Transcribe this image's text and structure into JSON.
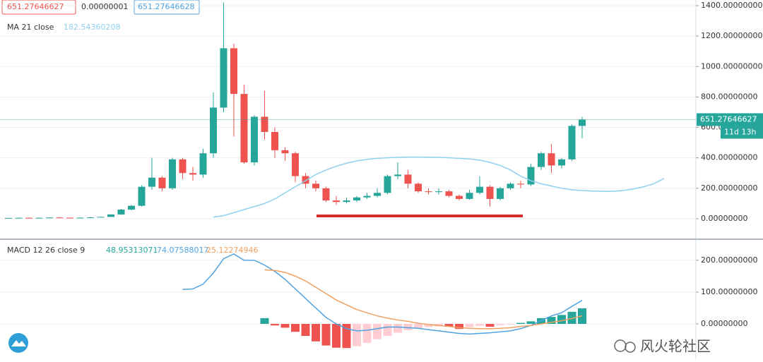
{
  "chart_data": [
    {
      "type": "candlestick",
      "open": [
        4,
        5,
        6,
        5,
        6,
        8,
        7,
        6,
        7,
        9,
        12,
        28,
        60,
        85,
        210,
        270,
        200,
        390,
        300,
        290,
        430,
        730,
        1120,
        820,
        370,
        670,
        570,
        450,
        430,
        280,
        230,
        200,
        120,
        110,
        120,
        140,
        150,
        170,
        280,
        290,
        230,
        180,
        175,
        180,
        150,
        130,
        170,
        210,
        130,
        200,
        230,
        225,
        340,
        430,
        350,
        390,
        610,
        null,
        null,
        null,
        null,
        null,
        null,
        null,
        null
      ],
      "high": [
        6,
        7,
        8,
        7,
        9,
        10,
        9,
        8,
        10,
        14,
        30,
        65,
        90,
        220,
        400,
        280,
        400,
        400,
        340,
        460,
        830,
        1420,
        1150,
        880,
        680,
        840,
        600,
        470,
        440,
        300,
        250,
        210,
        150,
        140,
        150,
        170,
        200,
        290,
        370,
        320,
        240,
        200,
        200,
        190,
        160,
        190,
        280,
        220,
        210,
        240,
        250,
        360,
        440,
        490,
        400,
        620,
        670,
        null,
        null,
        null,
        null,
        null,
        null,
        null,
        null
      ],
      "low": [
        3,
        4,
        5,
        4,
        5,
        6,
        5,
        5,
        6,
        8,
        11,
        25,
        55,
        80,
        190,
        180,
        190,
        260,
        250,
        270,
        400,
        700,
        540,
        360,
        350,
        520,
        400,
        380,
        240,
        200,
        180,
        110,
        90,
        100,
        110,
        130,
        140,
        160,
        260,
        200,
        170,
        160,
        160,
        140,
        120,
        125,
        160,
        80,
        120,
        190,
        200,
        215,
        320,
        300,
        330,
        380,
        530,
        null,
        null,
        null,
        null,
        null,
        null,
        null,
        null
      ],
      "close": [
        5,
        6,
        5,
        6,
        8,
        7,
        6,
        7,
        9,
        12,
        28,
        60,
        85,
        210,
        270,
        200,
        390,
        300,
        290,
        430,
        730,
        1120,
        820,
        370,
        670,
        570,
        450,
        430,
        280,
        230,
        200,
        120,
        110,
        120,
        140,
        150,
        170,
        280,
        290,
        230,
        180,
        175,
        180,
        150,
        130,
        170,
        210,
        130,
        200,
        230,
        225,
        340,
        430,
        350,
        390,
        610,
        651.27646627,
        null,
        null,
        null,
        null,
        null,
        null,
        null,
        null
      ],
      "up_color": "#26a69a",
      "down_color": "#ef5350",
      "readout": [
        "0.00000001",
        "651.27646628"
      ],
      "countdown": "11d 13h",
      "ma": {
        "name": "MA 21 close",
        "readout": "182.54360208",
        "color": "#8fd0ee",
        "values": [
          null,
          null,
          null,
          null,
          null,
          null,
          null,
          null,
          null,
          null,
          null,
          null,
          null,
          null,
          null,
          null,
          null,
          null,
          null,
          null,
          10,
          20,
          40,
          60,
          80,
          100,
          130,
          170,
          210,
          250,
          290,
          320,
          345,
          365,
          380,
          390,
          397,
          400,
          403,
          405,
          405,
          404,
          403,
          400,
          397,
          393,
          385,
          370,
          350,
          320,
          280,
          250,
          230,
          215,
          200,
          190,
          185,
          182,
          180,
          180,
          185,
          195,
          210,
          230,
          265
        ]
      },
      "ylim": [
        -130,
        1437
      ],
      "yticks": [
        {
          "value": 0,
          "label": "0.00000000"
        },
        {
          "value": 200,
          "label": "200.00000000"
        },
        {
          "value": 400,
          "label": "400.00000000"
        },
        {
          "value": 600,
          "label": "600.00000000"
        },
        {
          "value": 800,
          "label": "800.00000000"
        },
        {
          "value": 1000,
          "label": "1000.00000000"
        },
        {
          "value": 1200,
          "label": "1200.00000000"
        },
        {
          "value": 1400,
          "label": "1400.00000000"
        }
      ],
      "grid": true
    },
    {
      "type": "macd",
      "title": "MACD 12 26 close 9",
      "histogram": {
        "colors": [
          "#26a69a",
          "#b2dfdb",
          "#ef5350",
          "#ffcdd2"
        ],
        "values": [
          null,
          null,
          null,
          null,
          null,
          null,
          null,
          null,
          null,
          null,
          null,
          null,
          null,
          null,
          null,
          null,
          null,
          null,
          null,
          null,
          null,
          null,
          null,
          null,
          null,
          18,
          -5,
          -12,
          -25,
          -38,
          -55,
          -68,
          -75,
          -76,
          -70,
          -60,
          -48,
          -38,
          -28,
          -20,
          -14,
          -10,
          -8,
          -9,
          -16,
          -10,
          -6,
          -9,
          -4,
          -2,
          3,
          8,
          18,
          22,
          28,
          38,
          48.95313071
        ]
      },
      "macd": {
        "color": "#4fa3e0",
        "values": [
          null,
          null,
          null,
          null,
          null,
          null,
          null,
          null,
          null,
          null,
          null,
          null,
          null,
          null,
          null,
          null,
          null,
          108,
          110,
          125,
          160,
          205,
          220,
          200,
          200,
          185,
          165,
          140,
          110,
          80,
          50,
          20,
          0,
          -15,
          -22,
          -20,
          -15,
          -10,
          -10,
          -12,
          -14,
          -18,
          -22,
          -26,
          -30,
          -32,
          -30,
          -28,
          -25,
          -22,
          -15,
          -5,
          10,
          25,
          35,
          55,
          74.07588017
        ]
      },
      "signal": {
        "color": "#f0a060",
        "values": [
          null,
          null,
          null,
          null,
          null,
          null,
          null,
          null,
          null,
          null,
          null,
          null,
          null,
          null,
          null,
          null,
          null,
          null,
          null,
          null,
          null,
          null,
          null,
          null,
          null,
          170,
          168,
          162,
          150,
          135,
          115,
          95,
          75,
          60,
          45,
          35,
          25,
          18,
          12,
          8,
          2,
          -2,
          -5,
          -8,
          -12,
          -14,
          -15,
          -15,
          -14,
          -12,
          -8,
          -5,
          0,
          5,
          10,
          17,
          25.12274946
        ]
      },
      "ylim": [
        -111,
        264
      ],
      "yticks": [
        {
          "value": 0,
          "label": "0.00000000"
        },
        {
          "value": 100,
          "label": "100.00000000"
        },
        {
          "value": 200,
          "label": "200.00000000"
        }
      ],
      "grid": true
    }
  ],
  "watermark": "风火轮社区"
}
